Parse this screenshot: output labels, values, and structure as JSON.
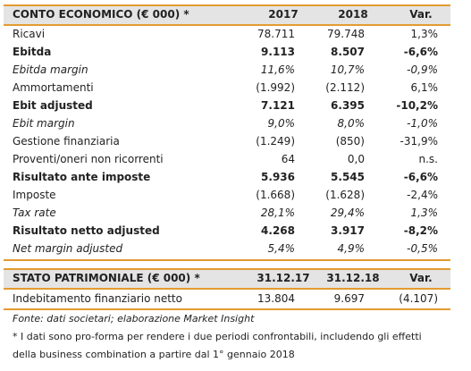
{
  "income": {
    "header": [
      "CONTO ECONOMICO (€ 000) *",
      "2017",
      "2018",
      "Var."
    ],
    "rows": [
      [
        "Ricavi",
        "78.711",
        "79.748",
        "1,3%"
      ],
      [
        "Ebitda",
        "9.113",
        "8.507",
        "-6,6%"
      ],
      [
        "Ebitda margin",
        "11,6%",
        "10,7%",
        "-0,9%"
      ],
      [
        "Ammortamenti",
        "(1.992)",
        "(2.112)",
        "6,1%"
      ],
      [
        "Ebit adjusted",
        "7.121",
        "6.395",
        "-10,2%"
      ],
      [
        "Ebit margin",
        "9,0%",
        "8,0%",
        "-1,0%"
      ],
      [
        "Gestione finanziaria",
        "(1.249)",
        "(850)",
        "-31,9%"
      ],
      [
        "Proventi/oneri non ricorrenti",
        "64",
        "0,0",
        "n.s."
      ],
      [
        "Risultato ante imposte",
        "5.936",
        "5.545",
        "-6,6%"
      ],
      [
        "Imposte",
        "(1.668)",
        "(1.628)",
        "-2,4%"
      ],
      [
        "Tax rate",
        "28,1%",
        "29,4%",
        "1,3%"
      ],
      [
        "Risultato netto adjusted",
        "4.268",
        "3.917",
        "-8,2%"
      ],
      [
        "Net margin adjusted",
        "5,4%",
        "4,9%",
        "-0,5%"
      ]
    ]
  },
  "balance": {
    "header": [
      "STATO PATRIMONIALE (€ 000) *",
      "31.12.17",
      "31.12.18",
      "Var."
    ],
    "rows": [
      [
        "Indebitamento finanziario netto",
        "13.804",
        "9.697",
        "(4.107)"
      ]
    ]
  },
  "notes": [
    "Fonte: dati societari; elaborazione Market Insight",
    "* I dati sono pro-forma per rendere i due periodi confrontabili, includendo gli effetti",
    "della business combination a partire dal 1° gennaio 2018"
  ]
}
